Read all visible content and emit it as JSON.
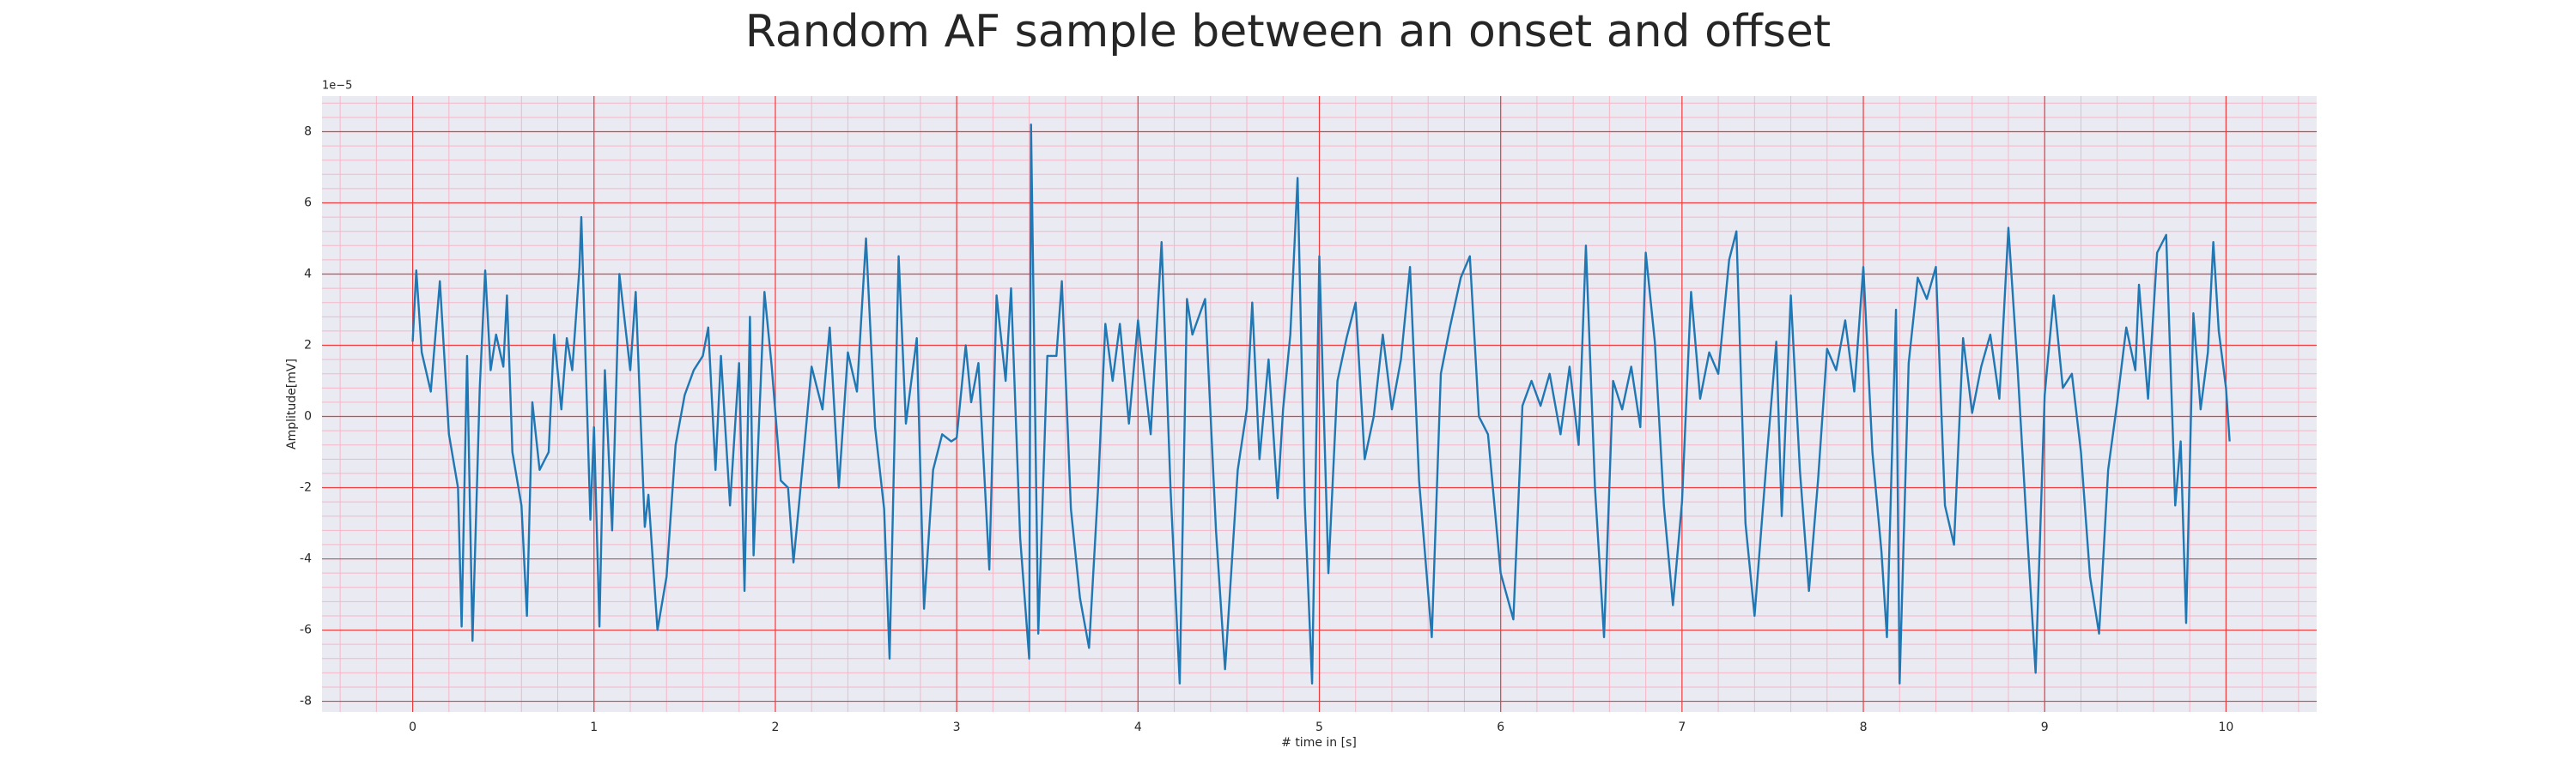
{
  "chart_data": {
    "type": "line",
    "title": "Random AF sample between an onset and offset",
    "x_label": "# time in [s]",
    "y_label": "Amplitude[mV]",
    "y_offset_text": "1e−5",
    "color": "#1f77b4",
    "grid": true,
    "minor_grid": true,
    "xlim": [
      -0.5,
      10.5
    ],
    "ylim": [
      -8.3,
      9
    ],
    "xticks": [
      0,
      1,
      2,
      3,
      4,
      5,
      6,
      7,
      8,
      9,
      10
    ],
    "yticks": [
      -8,
      -6,
      -4,
      -2,
      0,
      2,
      4,
      6,
      8
    ],
    "x": [
      0,
      0.02,
      0.05,
      0.1,
      0.15,
      0.2,
      0.25,
      0.27,
      0.3,
      0.33,
      0.37,
      0.4,
      0.43,
      0.46,
      0.5,
      0.52,
      0.55,
      0.6,
      0.63,
      0.66,
      0.7,
      0.75,
      0.78,
      0.82,
      0.85,
      0.88,
      0.92,
      0.93,
      0.98,
      1.0,
      1.03,
      1.06,
      1.1,
      1.14,
      1.2,
      1.23,
      1.28,
      1.3,
      1.35,
      1.4,
      1.45,
      1.5,
      1.55,
      1.6,
      1.63,
      1.67,
      1.7,
      1.75,
      1.8,
      1.83,
      1.86,
      1.88,
      1.94,
      1.98,
      2.03,
      2.07,
      2.1,
      2.13,
      2.2,
      2.26,
      2.3,
      2.35,
      2.4,
      2.45,
      2.5,
      2.55,
      2.6,
      2.63,
      2.68,
      2.72,
      2.78,
      2.82,
      2.87,
      2.92,
      2.97,
      3.0,
      3.05,
      3.08,
      3.12,
      3.18,
      3.22,
      3.27,
      3.3,
      3.35,
      3.4,
      3.41,
      3.45,
      3.5,
      3.55,
      3.58,
      3.63,
      3.68,
      3.73,
      3.78,
      3.82,
      3.86,
      3.9,
      3.95,
      4.0,
      4.07,
      4.13,
      4.18,
      4.23,
      4.27,
      4.3,
      4.37,
      4.43,
      4.48,
      4.55,
      4.6,
      4.63,
      4.67,
      4.72,
      4.77,
      4.8,
      4.84,
      4.88,
      4.92,
      4.96,
      5.0,
      5.05,
      5.1,
      5.15,
      5.2,
      5.25,
      5.3,
      5.35,
      5.4,
      5.45,
      5.5,
      5.55,
      5.62,
      5.67,
      5.72,
      5.78,
      5.83,
      5.88,
      5.93,
      6.0,
      6.07,
      6.12,
      6.17,
      6.22,
      6.27,
      6.33,
      6.38,
      6.43,
      6.47,
      6.52,
      6.57,
      6.62,
      6.67,
      6.72,
      6.77,
      6.8,
      6.85,
      6.9,
      6.95,
      7.0,
      7.05,
      7.1,
      7.15,
      7.2,
      7.26,
      7.3,
      7.35,
      7.4,
      7.47,
      7.52,
      7.55,
      7.6,
      7.65,
      7.7,
      7.75,
      7.8,
      7.85,
      7.9,
      7.95,
      8.0,
      8.05,
      8.1,
      8.13,
      8.18,
      8.2,
      8.25,
      8.3,
      8.35,
      8.4,
      8.45,
      8.5,
      8.55,
      8.6,
      8.65,
      8.7,
      8.75,
      8.8,
      8.85,
      8.9,
      8.95,
      9.0,
      9.05,
      9.1,
      9.15,
      9.2,
      9.25,
      9.3,
      9.35,
      9.4,
      9.45,
      9.5,
      9.52,
      9.57,
      9.62,
      9.67,
      9.72,
      9.75,
      9.78,
      9.82,
      9.86,
      9.9,
      9.93,
      9.96,
      10.0,
      10.02
    ],
    "values": [
      2.1,
      4.1,
      1.8,
      0.7,
      3.8,
      -0.5,
      -2,
      -5.9,
      1.7,
      -6.3,
      0.8,
      4.1,
      1.3,
      2.3,
      1.4,
      3.4,
      -1,
      -2.5,
      -5.6,
      0.4,
      -1.5,
      -1,
      2.3,
      0.2,
      2.2,
      1.3,
      4.2,
      5.6,
      -2.9,
      -0.3,
      -5.9,
      1.3,
      -3.2,
      4.0,
      1.3,
      3.5,
      -3.1,
      -2.2,
      -6.0,
      -4.5,
      -0.8,
      0.6,
      1.3,
      1.7,
      2.5,
      -1.5,
      1.7,
      -2.5,
      1.5,
      -4.9,
      2.8,
      -3.9,
      3.5,
      1.4,
      -1.8,
      -2,
      -4.1,
      -2.5,
      1.4,
      0.2,
      2.5,
      -2,
      1.8,
      0.7,
      5.0,
      -0.3,
      -2.6,
      -6.8,
      4.5,
      -0.2,
      2.2,
      -5.4,
      -1.5,
      -0.5,
      -0.7,
      -0.6,
      2.0,
      0.4,
      1.5,
      -4.3,
      3.4,
      1.0,
      3.6,
      -3.4,
      -6.8,
      8.2,
      -6.1,
      1.7,
      1.7,
      3.8,
      -2.6,
      -5.1,
      -6.5,
      -2.0,
      2.6,
      1.0,
      2.6,
      -0.2,
      2.7,
      -0.5,
      4.9,
      -2.1,
      -7.5,
      3.3,
      2.3,
      3.3,
      -3.2,
      -7.1,
      -1.5,
      0.2,
      3.2,
      -1.2,
      1.6,
      -2.3,
      0.2,
      2.3,
      6.7,
      -2.5,
      -7.5,
      4.5,
      -4.4,
      1.0,
      2.2,
      3.2,
      -1.2,
      0,
      2.3,
      0.2,
      1.6,
      4.2,
      -1.8,
      -6.2,
      1.2,
      2.5,
      3.9,
      4.5,
      0,
      -0.5,
      -4.4,
      -5.7,
      0.3,
      1.0,
      0.3,
      1.2,
      -0.5,
      1.4,
      -0.8,
      4.8,
      -2.0,
      -6.2,
      1.0,
      0.2,
      1.4,
      -0.3,
      4.6,
      2.1,
      -2.5,
      -5.3,
      -2.4,
      3.5,
      0.5,
      1.8,
      1.2,
      4.4,
      5.2,
      -3.0,
      -5.6,
      -1.0,
      2.1,
      -2.8,
      3.4,
      -1.5,
      -4.9,
      -1.8,
      1.9,
      1.3,
      2.7,
      0.7,
      4.2,
      -1.0,
      -3.8,
      -6.2,
      3.0,
      -7.5,
      1.5,
      3.9,
      3.3,
      4.2,
      -2.5,
      -3.6,
      2.2,
      0.1,
      1.4,
      2.3,
      0.5,
      5.3,
      1.4,
      -3.0,
      -7.2,
      0.6,
      3.4,
      0.8,
      1.2,
      -1.0,
      -4.5,
      -6.1,
      -1.5,
      0.4,
      2.5,
      1.3,
      3.7,
      0.5,
      4.6,
      5.1,
      -2.5,
      -0.7,
      -5.8,
      2.9,
      0.2,
      1.8,
      4.9,
      2.4,
      0.8,
      -0.7
    ]
  }
}
